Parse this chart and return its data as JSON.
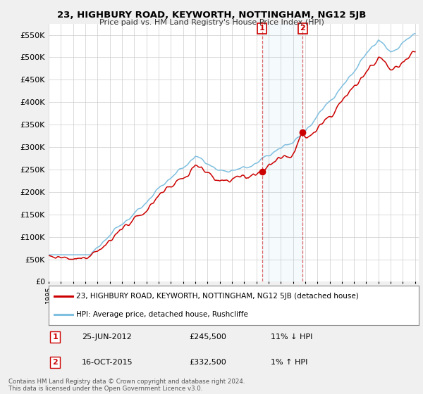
{
  "title": "23, HIGHBURY ROAD, KEYWORTH, NOTTINGHAM, NG12 5JB",
  "subtitle": "Price paid vs. HM Land Registry's House Price Index (HPI)",
  "ylabel_ticks": [
    "£0",
    "£50K",
    "£100K",
    "£150K",
    "£200K",
    "£250K",
    "£300K",
    "£350K",
    "£400K",
    "£450K",
    "£500K",
    "£550K"
  ],
  "ytick_values": [
    0,
    50000,
    100000,
    150000,
    200000,
    250000,
    300000,
    350000,
    400000,
    450000,
    500000,
    550000
  ],
  "ylim": [
    0,
    575000
  ],
  "hpi_color": "#7fbfdf",
  "price_color": "#cc0000",
  "transaction1_year": 2012.46,
  "transaction1_price": 245500,
  "transaction1_hpi": 275843,
  "transaction1_date": "25-JUN-2012",
  "transaction1_hpi_diff": "11% ↓ HPI",
  "transaction2_year": 2015.79,
  "transaction2_price": 332500,
  "transaction2_hpi": 329208,
  "transaction2_date": "16-OCT-2015",
  "transaction2_hpi_diff": "1% ↑ HPI",
  "legend_label1": "23, HIGHBURY ROAD, KEYWORTH, NOTTINGHAM, NG12 5JB (detached house)",
  "legend_label2": "HPI: Average price, detached house, Rushcliffe",
  "footnote": "Contains HM Land Registry data © Crown copyright and database right 2024.\nThis data is licensed under the Open Government Licence v3.0.",
  "background_color": "#f0f0f0",
  "plot_background": "#ffffff",
  "grid_color": "#cccccc",
  "xlim_start": 1995,
  "xlim_end": 2025.3
}
